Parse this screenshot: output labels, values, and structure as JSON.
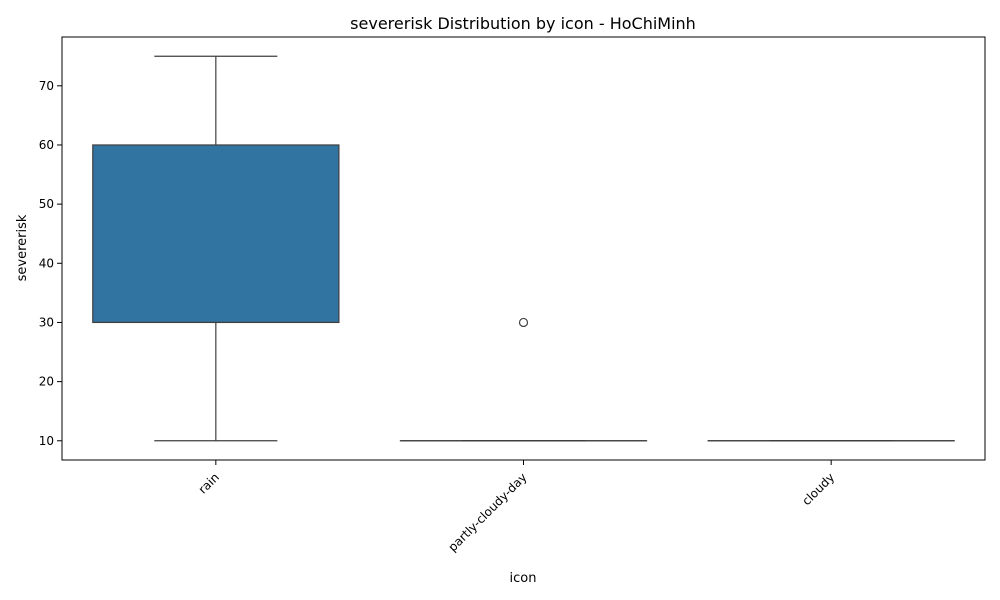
{
  "chart_data": {
    "type": "boxplot",
    "title": "severerisk Distribution by icon - HoChiMinh",
    "xlabel": "icon",
    "ylabel": "severerisk",
    "categories": [
      "rain",
      "partly-cloudy-day",
      "cloudy"
    ],
    "boxes": [
      {
        "category": "rain",
        "whisker_low": 10,
        "q1": 30,
        "median": 30,
        "q3": 60,
        "whisker_high": 75,
        "outliers": []
      },
      {
        "category": "partly-cloudy-day",
        "whisker_low": 10,
        "q1": 10,
        "median": 10,
        "q3": 10,
        "whisker_high": 10,
        "outliers": [
          30
        ]
      },
      {
        "category": "cloudy",
        "whisker_low": 10,
        "q1": 10,
        "median": 10,
        "q3": 10,
        "whisker_high": 10,
        "outliers": []
      }
    ],
    "yticks": [
      10,
      20,
      30,
      40,
      50,
      60,
      70
    ],
    "ylim": [
      6.75,
      78.25
    ],
    "grid": false,
    "colors": {
      "box_fill": "#3274a1",
      "line": "#3f3f3f",
      "axis": "#000000"
    }
  }
}
